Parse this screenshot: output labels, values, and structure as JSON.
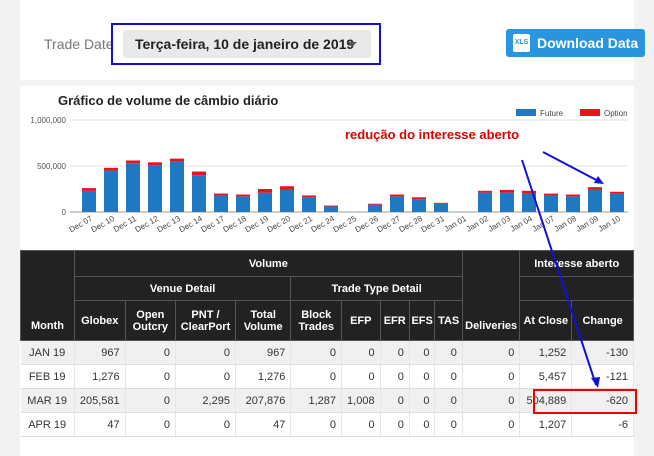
{
  "header": {
    "trade_date_label": "Trade Date",
    "trade_date_value": "Terça-feira, 10 de janeiro de 2019",
    "download_label": "Download Data",
    "xls_icon_text": "XLS"
  },
  "annotation": {
    "text": "redução do interesse aberto",
    "color": "#e00000"
  },
  "chart_data": {
    "type": "bar",
    "title": "Gráfico de volume de câmbio diário",
    "yticks": [
      "1,000,000",
      "500,000",
      "0"
    ],
    "ylim": [
      0,
      1000000
    ],
    "stacked": true,
    "legend": [
      "Future",
      "Option"
    ],
    "legend_position": "top-right",
    "colors": {
      "Future": "#1f78c1",
      "Option": "#e8141c"
    },
    "categories": [
      "Dec 07",
      "Dec 10",
      "Dec 11",
      "Dec 12",
      "Dec 13",
      "Dec 14",
      "Dec 17",
      "Dec 18",
      "Dec 19",
      "Dec 20",
      "Dec 21",
      "Dec 24",
      "Dec 25",
      "Dec 26",
      "Dec 27",
      "Dec 28",
      "Dec 31",
      "Jan 01",
      "Jan 02",
      "Jan 03",
      "Jan 04",
      "Jan 07",
      "Jan 08",
      "Jan 09",
      "Jan 10"
    ],
    "series": [
      {
        "name": "Future",
        "values": [
          230000,
          450000,
          530000,
          510000,
          550000,
          400000,
          180000,
          170000,
          210000,
          240000,
          160000,
          60000,
          0,
          80000,
          170000,
          140000,
          90000,
          0,
          210000,
          210000,
          200000,
          180000,
          170000,
          240000,
          200000
        ]
      },
      {
        "name": "Option",
        "values": [
          30000,
          30000,
          30000,
          30000,
          30000,
          40000,
          20000,
          20000,
          40000,
          40000,
          20000,
          10000,
          0,
          10000,
          20000,
          20000,
          10000,
          0,
          20000,
          30000,
          30000,
          20000,
          20000,
          30000,
          20000
        ]
      }
    ]
  },
  "table": {
    "group_volume": "Volume",
    "group_oi": "Interesse aberto",
    "venue_detail": "Venue Detail",
    "trade_type_detail": "Trade Type Detail",
    "columns": [
      "Month",
      "Globex",
      "Open Outcry",
      "PNT / ClearPort",
      "Total Volume",
      "Block Trades",
      "EFP",
      "EFR",
      "EFS",
      "TAS",
      "Deliveries",
      "At Close",
      "Change"
    ],
    "rows": [
      [
        "JAN 19",
        "967",
        "0",
        "0",
        "967",
        "0",
        "0",
        "0",
        "0",
        "0",
        "0",
        "1,252",
        "-130"
      ],
      [
        "FEB 19",
        "1,276",
        "0",
        "0",
        "1,276",
        "0",
        "0",
        "0",
        "0",
        "0",
        "0",
        "5,457",
        "-121"
      ],
      [
        "MAR 19",
        "205,581",
        "0",
        "2,295",
        "207,876",
        "1,287",
        "1,008",
        "0",
        "0",
        "0",
        "0",
        "504,889",
        "-620"
      ],
      [
        "APR 19",
        "47",
        "0",
        "0",
        "47",
        "0",
        "0",
        "0",
        "0",
        "0",
        "0",
        "1,207",
        "-6"
      ]
    ]
  }
}
